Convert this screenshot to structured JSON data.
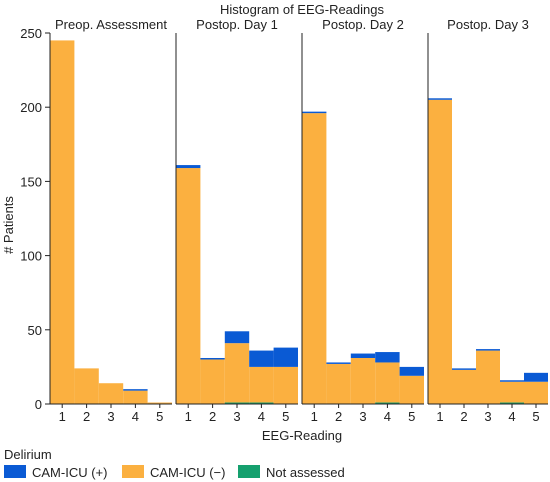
{
  "chart_data": {
    "type": "bar",
    "title": "Histogram of EEG-Readings",
    "xlabel": "EEG-Reading",
    "ylabel": "# Patients",
    "ylim": [
      0,
      250
    ],
    "yticks": [
      0,
      50,
      100,
      150,
      200,
      250
    ],
    "categories": [
      "1",
      "2",
      "3",
      "4",
      "5"
    ],
    "stacked": true,
    "legend": {
      "title": "Delirium",
      "placement": "bottom-left",
      "items": [
        {
          "name": "CAM-ICU (+)",
          "color": "#0a5ad4"
        },
        {
          "name": "CAM-ICU (−)",
          "color": "#fbb040"
        },
        {
          "name": "Not assessed",
          "color": "#15a06e"
        }
      ]
    },
    "panels": [
      {
        "title": "Preop. Assessment",
        "series": [
          {
            "name": "Not assessed",
            "values": [
              0,
              0,
              0,
              0,
              0
            ]
          },
          {
            "name": "CAM-ICU (−)",
            "values": [
              245,
              24,
              14,
              9,
              1
            ]
          },
          {
            "name": "CAM-ICU (+)",
            "values": [
              0,
              0,
              0,
              1,
              0
            ]
          }
        ]
      },
      {
        "title": "Postop. Day 1",
        "series": [
          {
            "name": "Not assessed",
            "values": [
              0,
              0,
              1,
              1,
              0
            ]
          },
          {
            "name": "CAM-ICU (−)",
            "values": [
              159,
              30,
              40,
              24,
              25
            ]
          },
          {
            "name": "CAM-ICU (+)",
            "values": [
              2,
              1,
              8,
              11,
              13
            ]
          }
        ]
      },
      {
        "title": "Postop. Day 2",
        "series": [
          {
            "name": "Not assessed",
            "values": [
              0,
              0,
              0,
              1,
              0
            ]
          },
          {
            "name": "CAM-ICU (−)",
            "values": [
              196,
              27,
              31,
              27,
              19
            ]
          },
          {
            "name": "CAM-ICU (+)",
            "values": [
              1,
              1,
              3,
              7,
              6
            ]
          }
        ]
      },
      {
        "title": "Postop. Day 3",
        "series": [
          {
            "name": "Not assessed",
            "values": [
              0,
              0,
              0,
              1,
              0
            ]
          },
          {
            "name": "CAM-ICU (−)",
            "values": [
              205,
              23,
              36,
              14,
              15
            ]
          },
          {
            "name": "CAM-ICU (+)",
            "values": [
              1,
              1,
              1,
              1,
              6
            ]
          }
        ]
      }
    ]
  }
}
